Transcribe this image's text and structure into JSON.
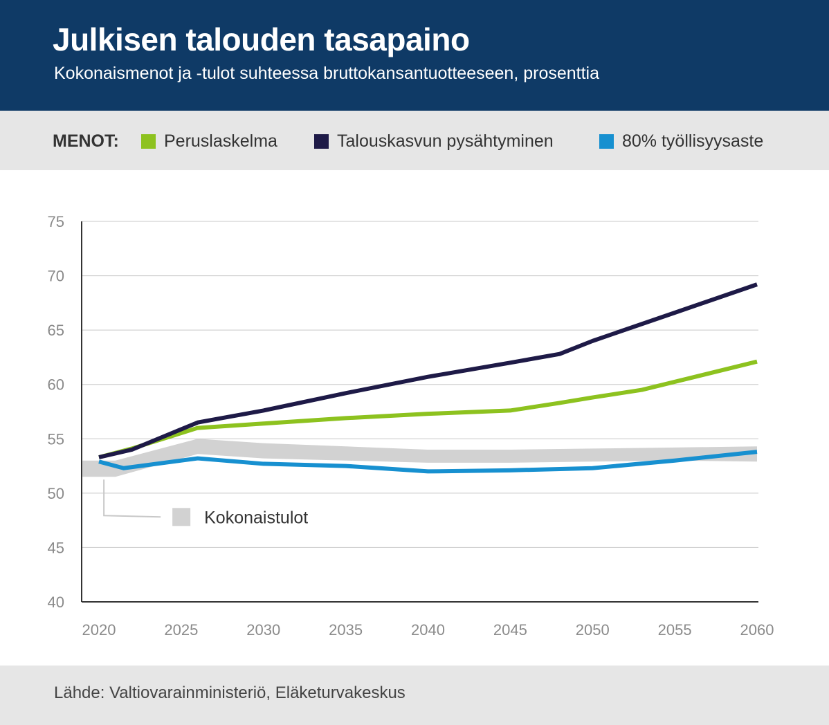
{
  "header": {
    "title": "Julkisen talouden tasapaino",
    "subtitle": "Kokonaismenot ja -tulot suhteessa bruttokansantuotteeseen, prosenttia"
  },
  "legend": {
    "prefix": "MENOT:",
    "items": [
      {
        "label": "Peruslaskelma",
        "color": "#8dc21f"
      },
      {
        "label": "Talouskasvun pysähtyminen",
        "color": "#1e1a47"
      },
      {
        "label": "80% työllisyysaste",
        "color": "#1790d0"
      }
    ]
  },
  "footer": {
    "source": "Lähde: Valtiovarainministeriö, Eläketurvakeskus"
  },
  "chart_data": {
    "type": "line",
    "title": "Julkisen talouden tasapaino",
    "subtitle": "Kokonaismenot ja -tulot suhteessa bruttokansantuotteeseen, prosenttia",
    "xlabel": "",
    "ylabel": "",
    "xlim": [
      2019,
      2061
    ],
    "ylim": [
      40,
      75
    ],
    "xticks": [
      2020,
      2025,
      2030,
      2035,
      2040,
      2045,
      2050,
      2055,
      2060
    ],
    "yticks": [
      40,
      45,
      50,
      55,
      60,
      65,
      70,
      75
    ],
    "grid": true,
    "series": [
      {
        "name": "Peruslaskelma",
        "color": "#8dc21f",
        "x": [
          2020,
          2022,
          2026,
          2030,
          2035,
          2040,
          2045,
          2048,
          2050,
          2053,
          2060
        ],
        "values": [
          53.3,
          54.1,
          56.0,
          56.4,
          56.9,
          57.3,
          57.6,
          58.3,
          58.8,
          59.5,
          62.1
        ]
      },
      {
        "name": "Talouskasvun pysähtyminen",
        "color": "#1e1a47",
        "x": [
          2020,
          2022,
          2026,
          2030,
          2035,
          2040,
          2045,
          2048,
          2050,
          2055,
          2060
        ],
        "values": [
          53.3,
          54.0,
          56.5,
          57.6,
          59.2,
          60.7,
          62.0,
          62.8,
          64.0,
          66.6,
          69.2
        ]
      },
      {
        "name": "80% työllisyysaste",
        "color": "#1790d0",
        "x": [
          2020,
          2021.5,
          2026,
          2030,
          2035,
          2040,
          2045,
          2050,
          2055,
          2060
        ],
        "values": [
          52.9,
          52.3,
          53.2,
          52.7,
          52.5,
          52.0,
          52.1,
          52.3,
          53.0,
          53.8
        ]
      }
    ],
    "bands": [
      {
        "name": "Kokonaistulot",
        "color": "#d2d2d2",
        "x": [
          2019,
          2021,
          2026,
          2030,
          2035,
          2040,
          2045,
          2050,
          2055,
          2060
        ],
        "lower": [
          51.5,
          51.5,
          53.6,
          53.2,
          53.0,
          52.8,
          52.8,
          52.9,
          53.0,
          52.9
        ],
        "upper": [
          53.0,
          53.0,
          55.0,
          54.6,
          54.3,
          54.0,
          54.0,
          54.1,
          54.2,
          54.3
        ]
      }
    ],
    "annotation": {
      "label": "Kokonaistulot",
      "swatch_color": "#d2d2d2",
      "points_to_x": 2020.3,
      "points_to_y": 51.5
    }
  }
}
